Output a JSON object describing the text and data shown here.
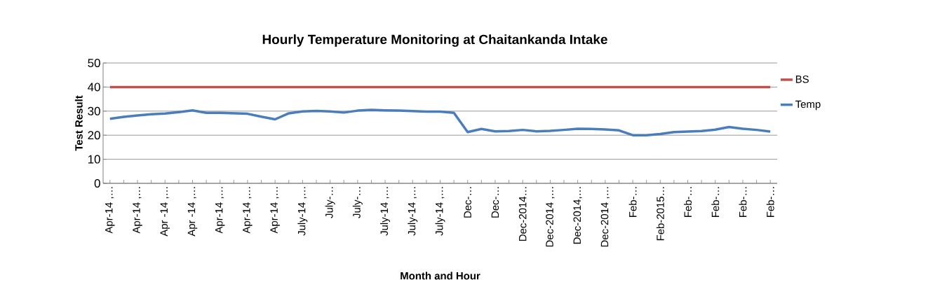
{
  "chart_data": {
    "type": "line",
    "title": "Hourly Temperature Monitoring at Chaitankanda Intake",
    "xlabel": "Month and Hour",
    "ylabel": "Test Result",
    "categories": [
      "Apr-14 ,…",
      null,
      "Apr-14 ,…",
      null,
      "Apr -14 ,…",
      null,
      "Apr -14 ,…",
      null,
      "Apr-14 ,…",
      null,
      "Apr-14 ,…",
      null,
      "Apr-14 ,…",
      null,
      "July-14 ,…",
      null,
      "July-…",
      null,
      "July-…",
      null,
      "July-14 ,…",
      null,
      "July-14 ,…",
      null,
      "July-14 ,…",
      null,
      "Dec-…",
      null,
      "Dec-…",
      null,
      "Dec-2014…",
      null,
      "Dec-2014 ,…",
      null,
      "Dec-2014,…",
      null,
      "Dec-2014 ,…",
      null,
      "Feb-…",
      null,
      "Feb-2015…",
      null,
      "Feb-…",
      null,
      "Feb-…",
      null,
      "Feb-…",
      null,
      "Feb-…"
    ],
    "series": [
      {
        "name": "BS",
        "color": "#c0504d",
        "values": [
          40,
          40,
          40,
          40,
          40,
          40,
          40,
          40,
          40,
          40,
          40,
          40,
          40,
          40,
          40,
          40,
          40,
          40,
          40,
          40,
          40,
          40,
          40,
          40,
          40,
          40,
          40,
          40,
          40,
          40,
          40,
          40,
          40,
          40,
          40,
          40,
          40,
          40,
          40,
          40,
          40,
          40,
          40,
          40,
          40,
          40,
          40,
          40,
          40
        ]
      },
      {
        "name": "Temp",
        "color": "#4a7ebb",
        "values": [
          26.8,
          27.6,
          28.2,
          28.7,
          29.0,
          29.6,
          30.3,
          29.3,
          29.3,
          29.1,
          28.9,
          27.7,
          26.6,
          29.1,
          29.9,
          30.1,
          29.9,
          29.4,
          30.2,
          30.5,
          30.3,
          30.2,
          30.0,
          29.8,
          29.8,
          29.3,
          21.3,
          22.6,
          21.6,
          21.7,
          22.2,
          21.6,
          21.8,
          22.2,
          22.7,
          22.6,
          22.4,
          22.0,
          20.0,
          20.0,
          20.5,
          21.3,
          21.5,
          21.7,
          22.3,
          23.4,
          22.7,
          22.2,
          21.5
        ]
      }
    ],
    "ylim": [
      0,
      50
    ],
    "yticks": [
      0,
      10,
      20,
      30,
      40,
      50
    ],
    "grid": "y",
    "legend": "right",
    "marker": "none",
    "line_style": "solid"
  }
}
